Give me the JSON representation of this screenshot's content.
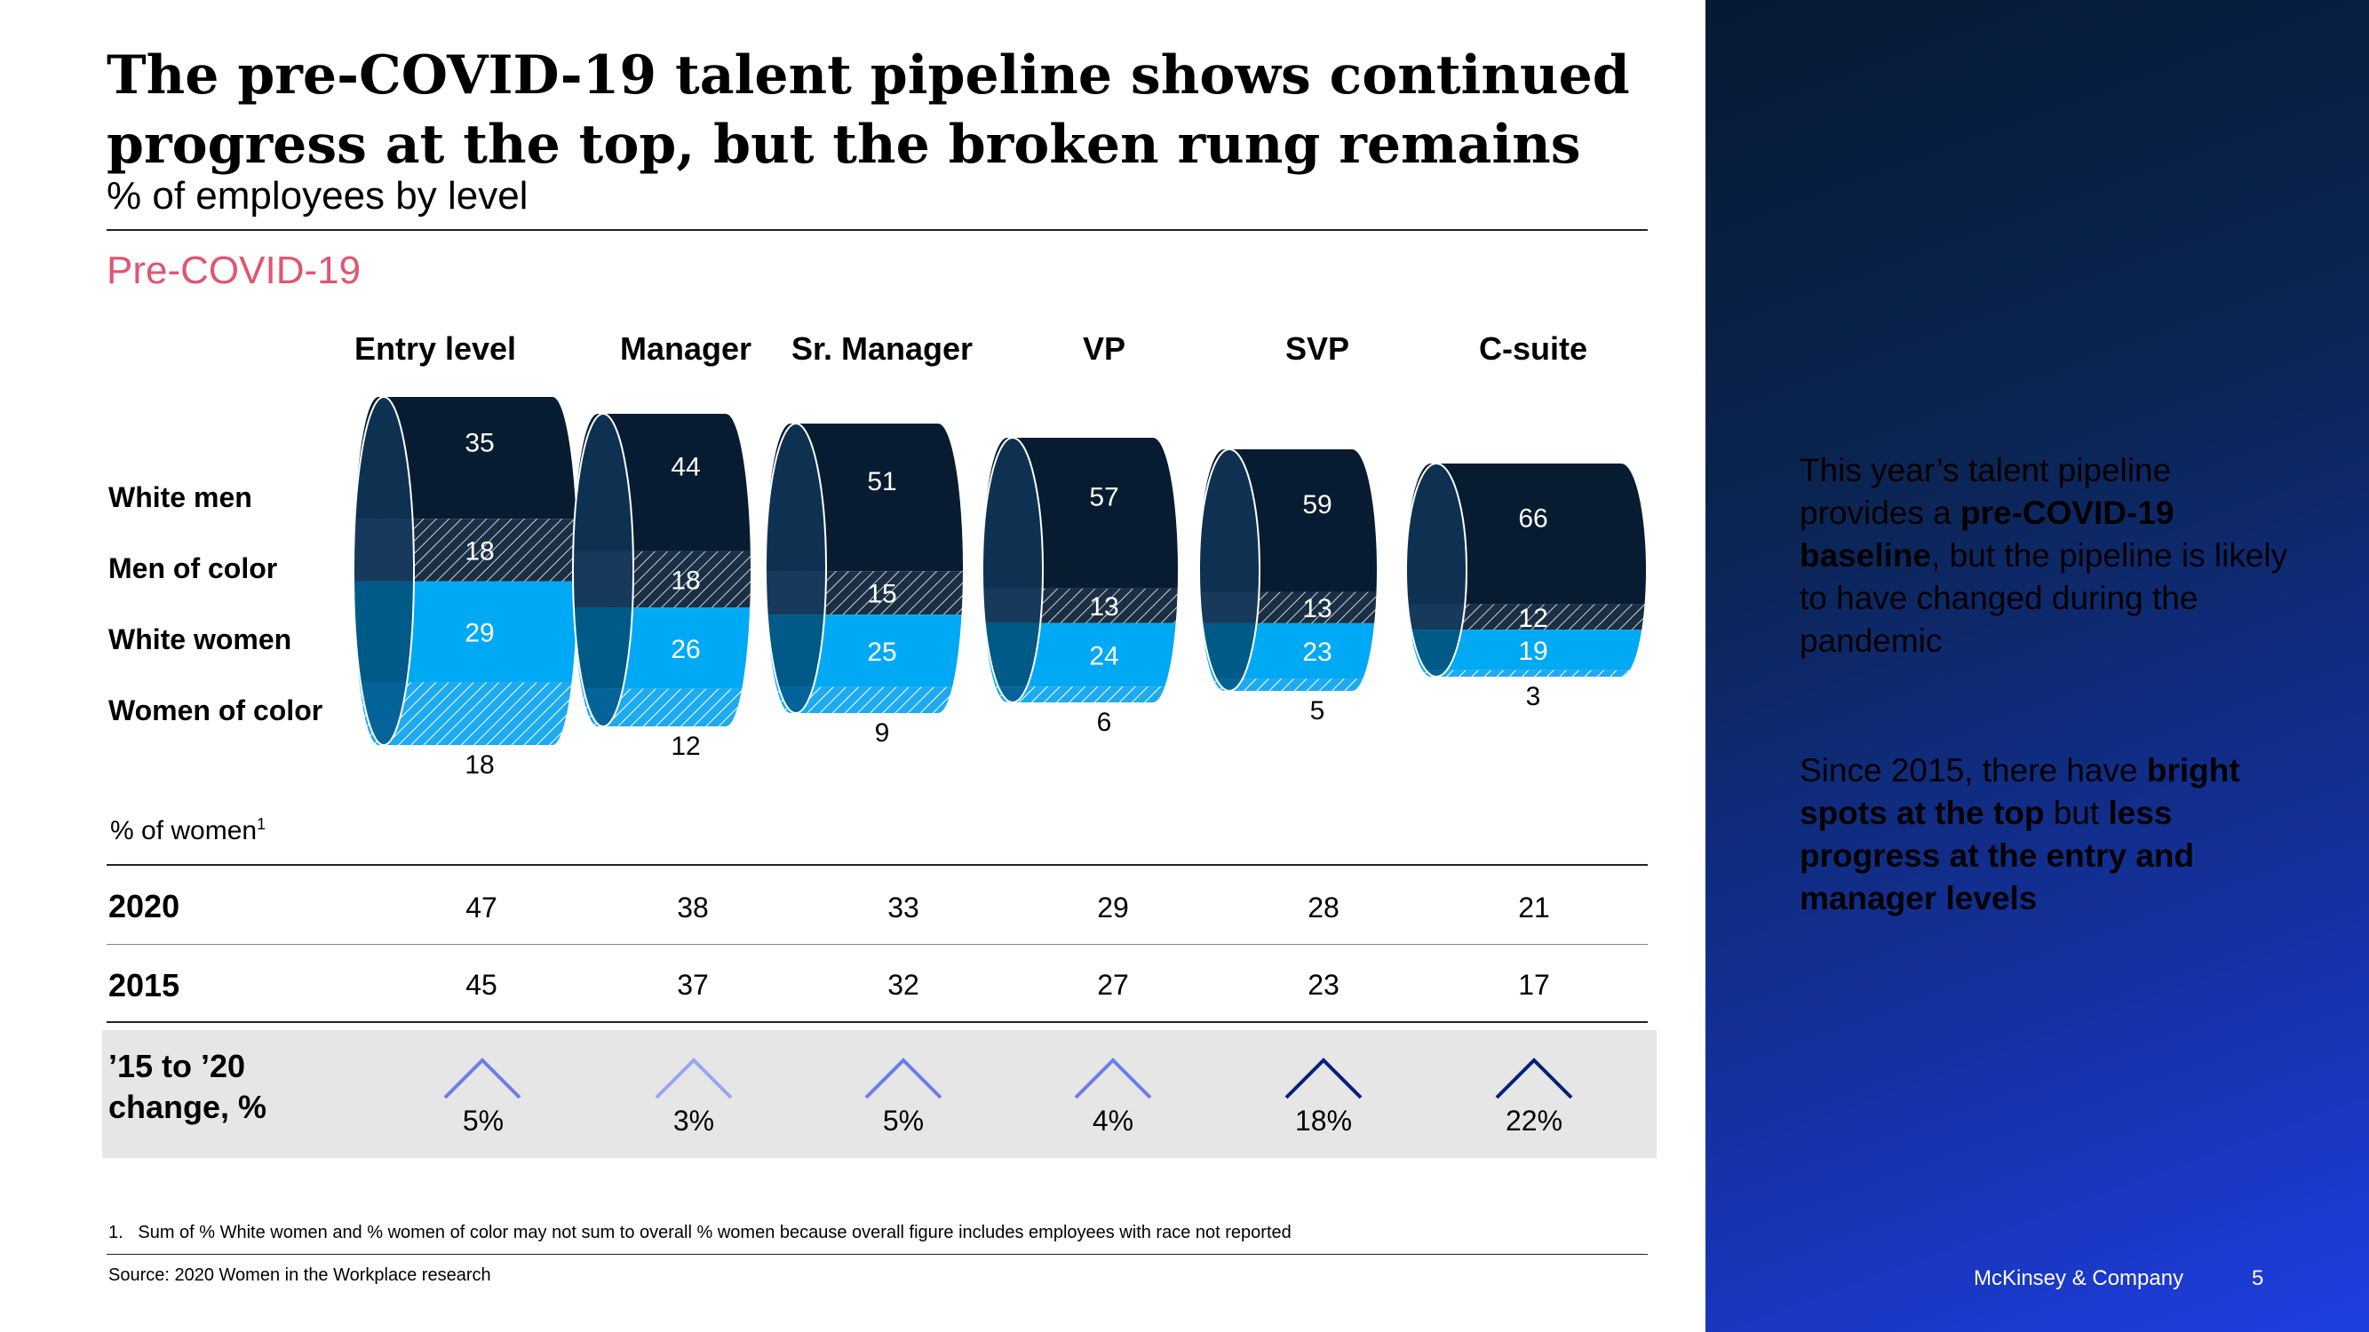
{
  "header": {
    "title": "The pre-COVID-19 talent pipeline shows continued progress at the top, but the broken rung remains",
    "subtitle": "% of employees by level",
    "section": "Pre-COVID-19"
  },
  "colors": {
    "white_men": "#071c30",
    "men_of_color": "#1b2f44",
    "white_women": "#00a9f4",
    "women_of_color": "#2ab6f5",
    "change_light": "#99a6f0",
    "change_mid": "#6b7fe8",
    "change_dark": "#06207a"
  },
  "chart_data": {
    "type": "bar",
    "title": "The pre-COVID-19 talent pipeline shows continued progress at the top, but the broken rung remains",
    "ylabel": "% of employees by level",
    "categories": [
      "Entry level",
      "Manager",
      "Sr. Manager",
      "VP",
      "SVP",
      "C-suite"
    ],
    "series": [
      {
        "name": "White men",
        "values": [
          35,
          44,
          51,
          57,
          59,
          66
        ]
      },
      {
        "name": "Men of color",
        "values": [
          18,
          18,
          15,
          13,
          13,
          12
        ]
      },
      {
        "name": "White women",
        "values": [
          29,
          26,
          25,
          24,
          23,
          19
        ]
      },
      {
        "name": "Women of color",
        "values": [
          18,
          12,
          9,
          6,
          5,
          3
        ]
      }
    ],
    "stacked": true
  },
  "women_table": {
    "label": "% of women",
    "label_sup": "1",
    "rows": [
      {
        "year": "2020",
        "values": [
          "47",
          "38",
          "33",
          "29",
          "28",
          "21"
        ]
      },
      {
        "year": "2015",
        "values": [
          "45",
          "37",
          "32",
          "27",
          "23",
          "17"
        ]
      }
    ]
  },
  "change": {
    "label_line1": "’15 to ’20",
    "label_line2": "change, %",
    "values": [
      "5%",
      "3%",
      "5%",
      "4%",
      "18%",
      "22%"
    ],
    "arrow_shades": [
      "mid",
      "light",
      "mid",
      "mid",
      "dark",
      "dark"
    ]
  },
  "footnote": "1.   Sum of % White women and % women of color may not sum to overall % women because overall figure includes employees with race not reported",
  "source": "Source: 2020 Women in the Workplace research",
  "sidebar": {
    "p1_a": "This year’s talent pipeline provides a ",
    "p1_b": "pre-COVID-19 baseline",
    "p1_c": ", but the pipeline is likely to have changed during the pandemic",
    "p2_a": "Since 2015, there have ",
    "p2_b": "bright spots at the top",
    "p2_c": " but ",
    "p2_d": "less progress at the entry and manager levels"
  },
  "footer": {
    "brand": "McKinsey & Company",
    "page": "5"
  }
}
